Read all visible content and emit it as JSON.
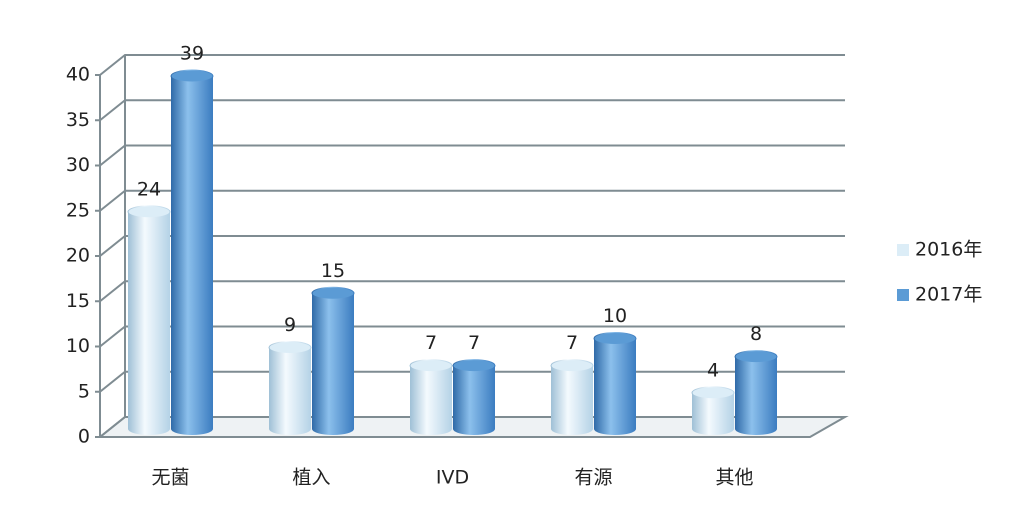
{
  "chart_data": {
    "type": "bar",
    "categories": [
      "无菌",
      "植入",
      "IVD",
      "有源",
      "其他"
    ],
    "series": [
      {
        "name": "2016年",
        "color": "#dcedf7",
        "values": [
          24,
          9,
          7,
          7,
          4
        ]
      },
      {
        "name": "2017年",
        "color": "#5b9bd5",
        "values": [
          39,
          15,
          7,
          10,
          8
        ]
      }
    ],
    "ylim": [
      0,
      40
    ],
    "yticks": [
      0,
      5,
      10,
      15,
      20,
      25,
      30,
      35,
      40
    ],
    "grid": true,
    "legend": "right"
  }
}
